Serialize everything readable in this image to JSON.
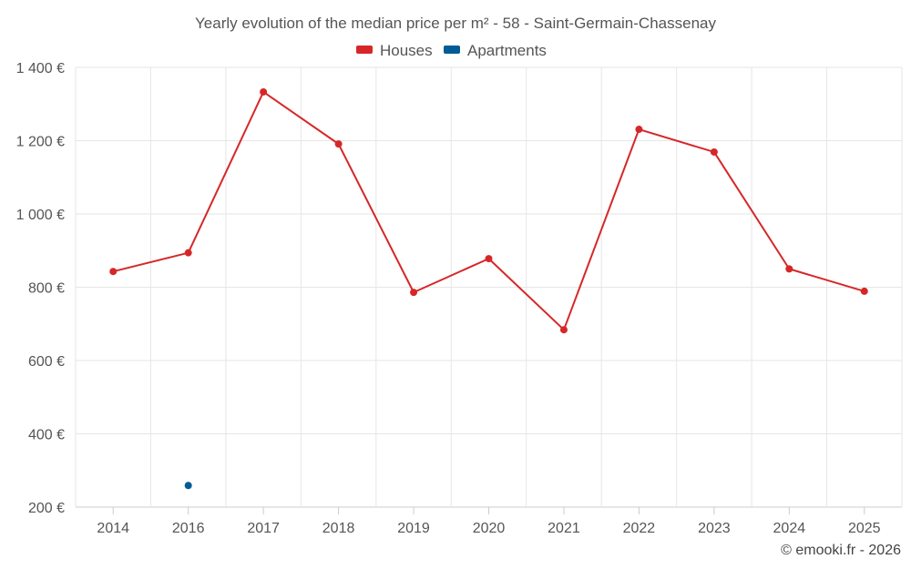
{
  "chart_data": {
    "type": "line",
    "title": "Yearly evolution of the median price per m² - 58 - Saint-Germain-Chassenay",
    "categories": [
      "2014",
      "2016",
      "2017",
      "2018",
      "2019",
      "2020",
      "2021",
      "2022",
      "2023",
      "2024",
      "2025"
    ],
    "series": [
      {
        "name": "Houses",
        "color": "#d62728",
        "values": [
          843,
          894,
          1333,
          1191,
          786,
          878,
          684,
          1231,
          1169,
          850,
          789
        ]
      },
      {
        "name": "Apartments",
        "color": "#005b96",
        "values": [
          null,
          259,
          null,
          null,
          null,
          null,
          null,
          null,
          null,
          null,
          null
        ]
      }
    ],
    "ylim": [
      200,
      1400
    ],
    "yticks": [
      200,
      400,
      600,
      800,
      1000,
      1200,
      1400
    ],
    "ytick_labels": [
      "200 €",
      "400 €",
      "600 €",
      "800 €",
      "1 000 €",
      "1 200 €",
      "1 400 €"
    ],
    "xlabel": "",
    "ylabel": "",
    "legend_position": "top-center",
    "grid": true
  },
  "credit": "© emooki.fr - 2026"
}
